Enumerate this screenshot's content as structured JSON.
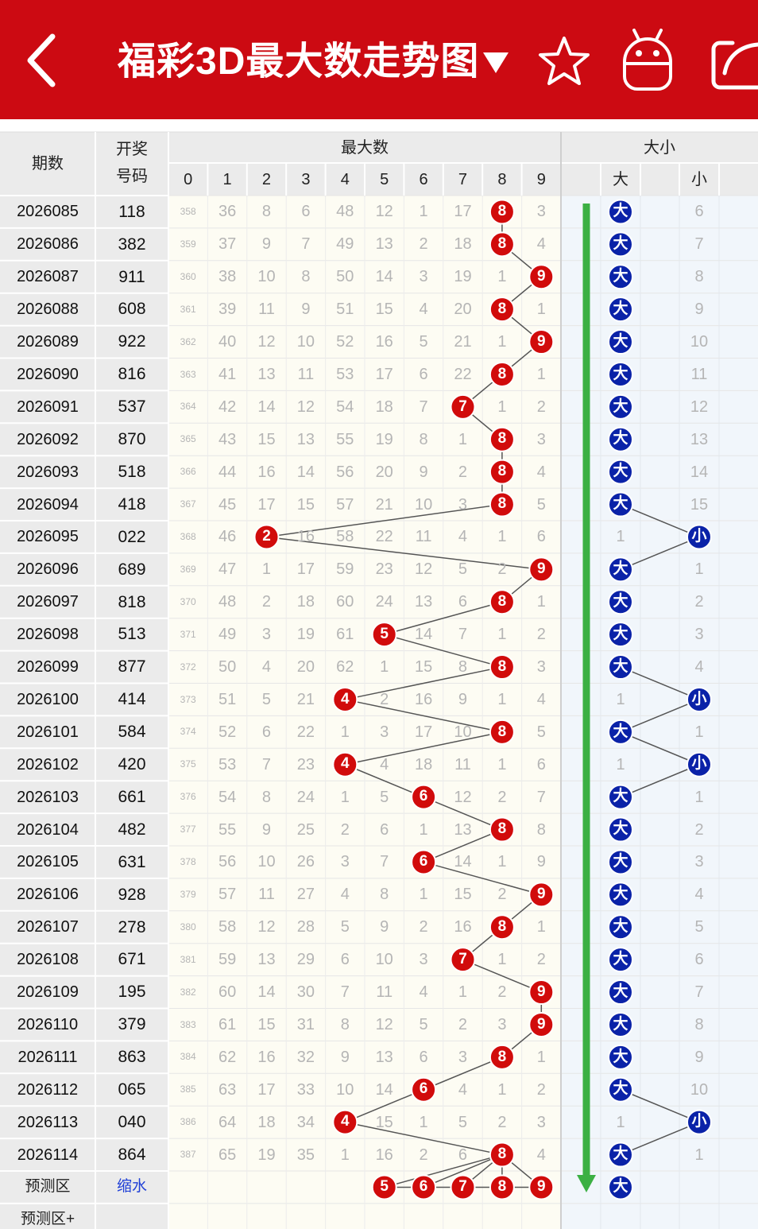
{
  "header": {
    "title": "福彩3D最大数走势图",
    "back_icon": "chevron-left-icon",
    "dropdown_icon": "triangle-down-icon",
    "favorite_icon": "star-outline-icon",
    "robot_icon": "robot-icon",
    "share_icon": "share-icon"
  },
  "table": {
    "col_period": "期数",
    "col_code_line1": "开奖",
    "col_code_line2": "号码",
    "group_max": "最大数",
    "group_size": "大小",
    "digits": [
      "0",
      "1",
      "2",
      "3",
      "4",
      "5",
      "6",
      "7",
      "8",
      "9"
    ],
    "size_big": "大",
    "size_small": "小",
    "rows": [
      {
        "period": "2026085",
        "code": "118",
        "miss": [
          "358",
          "36",
          "8",
          "6",
          "48",
          "12",
          "1",
          "17",
          "8",
          "3"
        ],
        "max": 8,
        "size": "大",
        "small_miss": "6"
      },
      {
        "period": "2026086",
        "code": "382",
        "miss": [
          "359",
          "37",
          "9",
          "7",
          "49",
          "13",
          "2",
          "18",
          "8",
          "4"
        ],
        "max": 8,
        "size": "大",
        "small_miss": "7"
      },
      {
        "period": "2026087",
        "code": "911",
        "miss": [
          "360",
          "38",
          "10",
          "8",
          "50",
          "14",
          "3",
          "19",
          "1",
          "9"
        ],
        "max": 9,
        "size": "大",
        "small_miss": "8"
      },
      {
        "period": "2026088",
        "code": "608",
        "miss": [
          "361",
          "39",
          "11",
          "9",
          "51",
          "15",
          "4",
          "20",
          "8",
          "1"
        ],
        "max": 8,
        "size": "大",
        "small_miss": "9"
      },
      {
        "period": "2026089",
        "code": "922",
        "miss": [
          "362",
          "40",
          "12",
          "10",
          "52",
          "16",
          "5",
          "21",
          "1",
          "9"
        ],
        "max": 9,
        "size": "大",
        "small_miss": "10"
      },
      {
        "period": "2026090",
        "code": "816",
        "miss": [
          "363",
          "41",
          "13",
          "11",
          "53",
          "17",
          "6",
          "22",
          "8",
          "1"
        ],
        "max": 8,
        "size": "大",
        "small_miss": "11"
      },
      {
        "period": "2026091",
        "code": "537",
        "miss": [
          "364",
          "42",
          "14",
          "12",
          "54",
          "18",
          "7",
          "7",
          "1",
          "2"
        ],
        "max": 7,
        "size": "大",
        "small_miss": "12"
      },
      {
        "period": "2026092",
        "code": "870",
        "miss": [
          "365",
          "43",
          "15",
          "13",
          "55",
          "19",
          "8",
          "1",
          "8",
          "3"
        ],
        "max": 8,
        "size": "大",
        "small_miss": "13"
      },
      {
        "period": "2026093",
        "code": "518",
        "miss": [
          "366",
          "44",
          "16",
          "14",
          "56",
          "20",
          "9",
          "2",
          "8",
          "4"
        ],
        "max": 8,
        "size": "大",
        "small_miss": "14"
      },
      {
        "period": "2026094",
        "code": "418",
        "miss": [
          "367",
          "45",
          "17",
          "15",
          "57",
          "21",
          "10",
          "3",
          "8",
          "5"
        ],
        "max": 8,
        "size": "大",
        "small_miss": "15"
      },
      {
        "period": "2026095",
        "code": "022",
        "miss": [
          "368",
          "46",
          "2",
          "16",
          "58",
          "22",
          "11",
          "4",
          "1",
          "6"
        ],
        "max": 2,
        "size": "小",
        "big_miss": "1"
      },
      {
        "period": "2026096",
        "code": "689",
        "miss": [
          "369",
          "47",
          "1",
          "17",
          "59",
          "23",
          "12",
          "5",
          "2",
          "9"
        ],
        "max": 9,
        "size": "大",
        "small_miss": "1"
      },
      {
        "period": "2026097",
        "code": "818",
        "miss": [
          "370",
          "48",
          "2",
          "18",
          "60",
          "24",
          "13",
          "6",
          "8",
          "1"
        ],
        "max": 8,
        "size": "大",
        "small_miss": "2"
      },
      {
        "period": "2026098",
        "code": "513",
        "miss": [
          "371",
          "49",
          "3",
          "19",
          "61",
          "5",
          "14",
          "7",
          "1",
          "2"
        ],
        "max": 5,
        "size": "大",
        "small_miss": "3"
      },
      {
        "period": "2026099",
        "code": "877",
        "miss": [
          "372",
          "50",
          "4",
          "20",
          "62",
          "1",
          "15",
          "8",
          "8",
          "3"
        ],
        "max": 8,
        "size": "大",
        "small_miss": "4"
      },
      {
        "period": "2026100",
        "code": "414",
        "miss": [
          "373",
          "51",
          "5",
          "21",
          "4",
          "2",
          "16",
          "9",
          "1",
          "4"
        ],
        "max": 4,
        "size": "小",
        "big_miss": "1"
      },
      {
        "period": "2026101",
        "code": "584",
        "miss": [
          "374",
          "52",
          "6",
          "22",
          "1",
          "3",
          "17",
          "10",
          "8",
          "5"
        ],
        "max": 8,
        "size": "大",
        "small_miss": "1"
      },
      {
        "period": "2026102",
        "code": "420",
        "miss": [
          "375",
          "53",
          "7",
          "23",
          "4",
          "4",
          "18",
          "11",
          "1",
          "6"
        ],
        "max": 4,
        "size": "小",
        "big_miss": "1"
      },
      {
        "period": "2026103",
        "code": "661",
        "miss": [
          "376",
          "54",
          "8",
          "24",
          "1",
          "5",
          "6",
          "12",
          "2",
          "7"
        ],
        "max": 6,
        "size": "大",
        "small_miss": "1"
      },
      {
        "period": "2026104",
        "code": "482",
        "miss": [
          "377",
          "55",
          "9",
          "25",
          "2",
          "6",
          "1",
          "13",
          "8",
          "8"
        ],
        "max": 8,
        "size": "大",
        "small_miss": "2"
      },
      {
        "period": "2026105",
        "code": "631",
        "miss": [
          "378",
          "56",
          "10",
          "26",
          "3",
          "7",
          "6",
          "14",
          "1",
          "9"
        ],
        "max": 6,
        "size": "大",
        "small_miss": "3"
      },
      {
        "period": "2026106",
        "code": "928",
        "miss": [
          "379",
          "57",
          "11",
          "27",
          "4",
          "8",
          "1",
          "15",
          "2",
          "9"
        ],
        "max": 9,
        "size": "大",
        "small_miss": "4"
      },
      {
        "period": "2026107",
        "code": "278",
        "miss": [
          "380",
          "58",
          "12",
          "28",
          "5",
          "9",
          "2",
          "16",
          "8",
          "1"
        ],
        "max": 8,
        "size": "大",
        "small_miss": "5"
      },
      {
        "period": "2026108",
        "code": "671",
        "miss": [
          "381",
          "59",
          "13",
          "29",
          "6",
          "10",
          "3",
          "7",
          "1",
          "2"
        ],
        "max": 7,
        "size": "大",
        "small_miss": "6"
      },
      {
        "period": "2026109",
        "code": "195",
        "miss": [
          "382",
          "60",
          "14",
          "30",
          "7",
          "11",
          "4",
          "1",
          "2",
          "9"
        ],
        "max": 9,
        "size": "大",
        "small_miss": "7"
      },
      {
        "period": "2026110",
        "code": "379",
        "miss": [
          "383",
          "61",
          "15",
          "31",
          "8",
          "12",
          "5",
          "2",
          "3",
          "9"
        ],
        "max": 9,
        "size": "大",
        "small_miss": "8"
      },
      {
        "period": "2026111",
        "code": "863",
        "miss": [
          "384",
          "62",
          "16",
          "32",
          "9",
          "13",
          "6",
          "3",
          "8",
          "1"
        ],
        "max": 8,
        "size": "大",
        "small_miss": "9"
      },
      {
        "period": "2026112",
        "code": "065",
        "miss": [
          "385",
          "63",
          "17",
          "33",
          "10",
          "14",
          "6",
          "4",
          "1",
          "2"
        ],
        "max": 6,
        "size": "大",
        "small_miss": "10"
      },
      {
        "period": "2026113",
        "code": "040",
        "miss": [
          "386",
          "64",
          "18",
          "34",
          "4",
          "15",
          "1",
          "5",
          "2",
          "3"
        ],
        "max": 4,
        "size": "小",
        "big_miss": "1"
      },
      {
        "period": "2026114",
        "code": "864",
        "miss": [
          "387",
          "65",
          "19",
          "35",
          "1",
          "16",
          "2",
          "6",
          "8",
          "4"
        ],
        "max": 8,
        "size": "大",
        "small_miss": "1"
      }
    ],
    "prediction": {
      "label": "预测区",
      "link": "缩水",
      "balls": [
        5,
        6,
        7,
        8,
        9
      ],
      "size": "大"
    },
    "prediction_plus_label": "预测区+"
  },
  "colors": {
    "header_bg": "#cc0a12",
    "red_ball": "#d10b0b",
    "blue_ball": "#0a22a8",
    "trend_arrow": "#3cb043",
    "miss_text": "#b5b5b5",
    "link_blue": "#1f3fd6"
  }
}
